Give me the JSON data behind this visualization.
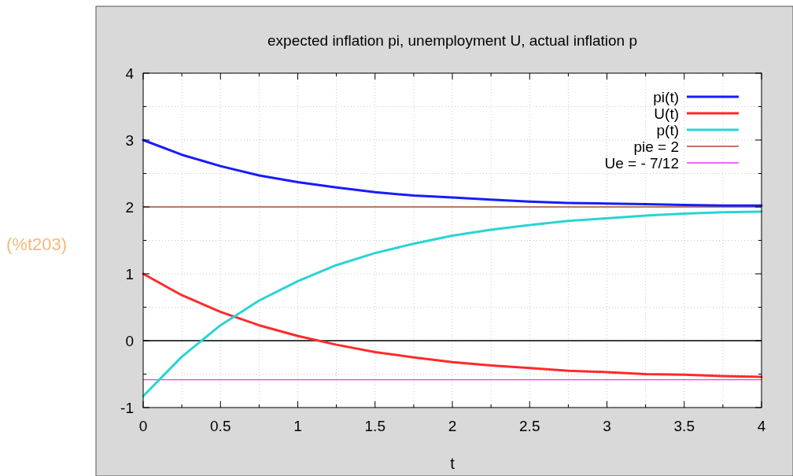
{
  "chart_data": {
    "type": "line",
    "title": "expected inflation pi, unemployment U, actual inflation p",
    "xlabel": "t",
    "x": [
      0,
      0.25,
      0.5,
      0.75,
      1,
      1.25,
      1.5,
      1.75,
      2,
      2.25,
      2.5,
      2.75,
      3,
      3.25,
      3.5,
      3.75,
      4
    ],
    "series": [
      {
        "name": "pi(t)",
        "color": "#1a1aff",
        "values": [
          3,
          2.78,
          2.61,
          2.47,
          2.37,
          2.29,
          2.22,
          2.17,
          2.14,
          2.11,
          2.08,
          2.06,
          2.05,
          2.04,
          2.03,
          2.02,
          2.02
        ]
      },
      {
        "name": "U(t)",
        "color": "#ff2a2a",
        "values": [
          1,
          0.68,
          0.43,
          0.23,
          0.07,
          -0.06,
          -0.17,
          -0.25,
          -0.32,
          -0.37,
          -0.41,
          -0.45,
          -0.47,
          -0.5,
          -0.51,
          -0.53,
          -0.54
        ]
      },
      {
        "name": "p(t)",
        "color": "#2ad4d4",
        "values": [
          -0.83,
          -0.24,
          0.23,
          0.6,
          0.89,
          1.13,
          1.31,
          1.45,
          1.57,
          1.66,
          1.73,
          1.79,
          1.83,
          1.87,
          1.9,
          1.92,
          1.93
        ]
      }
    ],
    "ref_lines": [
      {
        "axis": "y",
        "value": 2,
        "label": "pie = 2",
        "color": "#a0522d"
      },
      {
        "axis": "y",
        "value": -0.5833,
        "label": "Ue = - 7/12",
        "color": "#ff33ff"
      },
      {
        "axis": "y",
        "value": 0,
        "color": "#000000"
      }
    ],
    "xlim": [
      0,
      4
    ],
    "ylim": [
      -1,
      4
    ],
    "xticks": [
      0,
      {
        "value": 0.25,
        "label": null
      },
      0.5,
      {
        "value": 0.75,
        "label": null
      },
      1,
      {
        "value": 1.25,
        "label": null
      },
      1.5,
      {
        "value": 1.75,
        "label": null
      },
      2,
      {
        "value": 2.25,
        "label": null
      },
      2.5,
      {
        "value": 2.75,
        "label": null
      },
      3,
      {
        "value": 3.25,
        "label": null
      },
      3.5,
      {
        "value": 3.75,
        "label": null
      },
      4
    ],
    "yticks": [
      -1,
      {
        "value": -0.5,
        "label": null
      },
      0,
      {
        "value": 0.5,
        "label": null
      },
      1,
      {
        "value": 1.5,
        "label": null
      },
      2,
      {
        "value": 2.5,
        "label": null
      },
      3,
      {
        "value": 3.5,
        "label": null
      },
      4
    ],
    "grid": true,
    "legend": "top right",
    "marker": "none",
    "line_style": "solid",
    "annotations": [
      "(%t203)"
    ]
  }
}
